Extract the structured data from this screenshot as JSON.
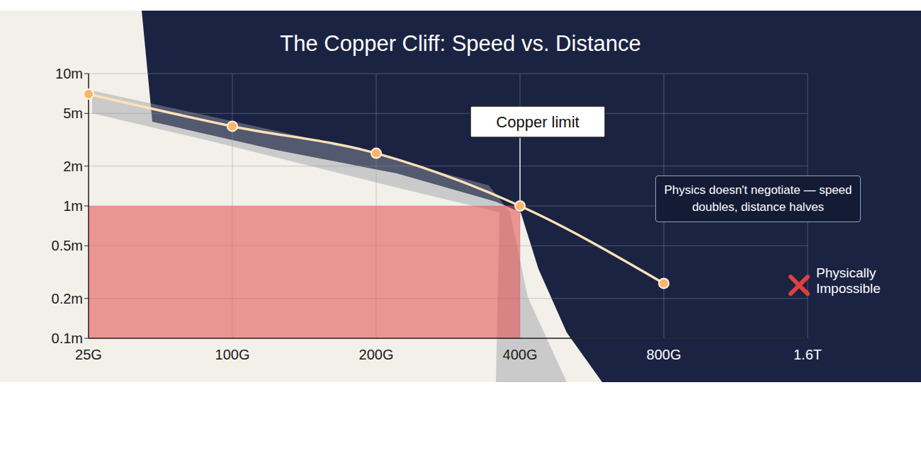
{
  "chart_data": {
    "type": "line",
    "title": "The Copper Cliff: Speed vs. Distance",
    "categories": [
      "25G",
      "100G",
      "200G",
      "400G",
      "800G",
      "1.6T"
    ],
    "values": [
      7,
      4,
      2.5,
      1,
      0.26,
      null
    ],
    "color": "#ffe2b8",
    "marker": "circle",
    "log": "y",
    "ylim": [
      0.1,
      10
    ],
    "yticks": [
      {
        "value": 0.1,
        "label": "0.1m"
      },
      {
        "value": 0.2,
        "label": "0.2m"
      },
      {
        "value": 0.5,
        "label": "0.5m"
      },
      {
        "value": 1,
        "label": "1m"
      },
      {
        "value": 2,
        "label": "2m"
      },
      {
        "value": 5,
        "label": "5m"
      },
      {
        "value": 10,
        "label": "10m"
      }
    ],
    "grid": true,
    "highlight": {
      "y": [
        0.1,
        1
      ],
      "x_to": "400G",
      "color": "#e34b4b"
    },
    "annotations": [
      {
        "text": "Copper limit",
        "x": "400G"
      },
      {
        "text": "Physics doesn't negotiate — speed doubles, distance halves"
      },
      {
        "text": "Physically Impossible",
        "x": "1.6T"
      }
    ]
  }
}
